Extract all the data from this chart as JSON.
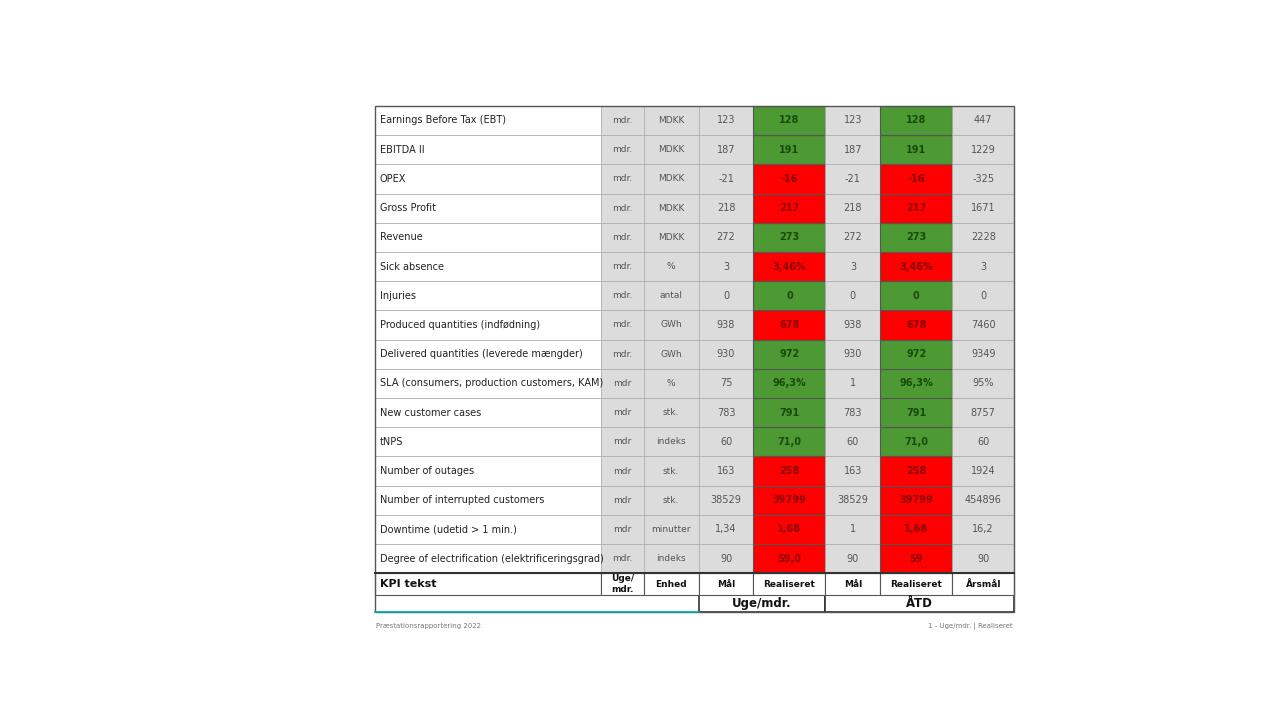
{
  "title_left": "Præstationsrapportering 2022",
  "title_right": "1 - Uge/mdr. | Realiseret",
  "rows": [
    {
      "kpi": "Degree of electrification (elektrificeringsgrad)",
      "freq": "mdr.",
      "enhed": "indeks",
      "uge_maal": "90",
      "uge_real": "59,0",
      "uge_real_color": "red",
      "atd_maal": "90",
      "atd_real": "59",
      "atd_real_color": "red",
      "aarsmaal": "90"
    },
    {
      "kpi": "Downtime (udetid > 1 min.)",
      "freq": "mdr",
      "enhed": "minutter",
      "uge_maal": "1,34",
      "uge_real": "1,68",
      "uge_real_color": "red",
      "atd_maal": "1",
      "atd_real": "1,68",
      "atd_real_color": "red",
      "aarsmaal": "16,2"
    },
    {
      "kpi": "Number of interrupted customers",
      "freq": "mdr",
      "enhed": "stk.",
      "uge_maal": "38529",
      "uge_real": "39799",
      "uge_real_color": "red",
      "atd_maal": "38529",
      "atd_real": "39799",
      "atd_real_color": "red",
      "aarsmaal": "454896"
    },
    {
      "kpi": "Number of outages",
      "freq": "mdr",
      "enhed": "stk.",
      "uge_maal": "163",
      "uge_real": "258",
      "uge_real_color": "red",
      "atd_maal": "163",
      "atd_real": "258",
      "atd_real_color": "red",
      "aarsmaal": "1924"
    },
    {
      "kpi": "tNPS",
      "freq": "mdr",
      "enhed": "indeks",
      "uge_maal": "60",
      "uge_real": "71,0",
      "uge_real_color": "green",
      "atd_maal": "60",
      "atd_real": "71,0",
      "atd_real_color": "green",
      "aarsmaal": "60"
    },
    {
      "kpi": "New customer cases",
      "freq": "mdr",
      "enhed": "stk.",
      "uge_maal": "783",
      "uge_real": "791",
      "uge_real_color": "green",
      "atd_maal": "783",
      "atd_real": "791",
      "atd_real_color": "green",
      "aarsmaal": "8757"
    },
    {
      "kpi": "SLA (consumers, production customers, KAM)",
      "freq": "mdr",
      "enhed": "%",
      "uge_maal": "75",
      "uge_real": "96,3%",
      "uge_real_color": "green",
      "atd_maal": "1",
      "atd_real": "96,3%",
      "atd_real_color": "green",
      "aarsmaal": "95%"
    },
    {
      "kpi": "Delivered quantities (leverede mængder)",
      "freq": "mdr.",
      "enhed": "GWh",
      "uge_maal": "930",
      "uge_real": "972",
      "uge_real_color": "green",
      "atd_maal": "930",
      "atd_real": "972",
      "atd_real_color": "green",
      "aarsmaal": "9349"
    },
    {
      "kpi": "Produced quantities (indfødning)",
      "freq": "mdr.",
      "enhed": "GWh",
      "uge_maal": "938",
      "uge_real": "678",
      "uge_real_color": "red",
      "atd_maal": "938",
      "atd_real": "678",
      "atd_real_color": "red",
      "aarsmaal": "7460"
    },
    {
      "kpi": "Injuries",
      "freq": "mdr.",
      "enhed": "antal",
      "uge_maal": "0",
      "uge_real": "0",
      "uge_real_color": "green",
      "atd_maal": "0",
      "atd_real": "0",
      "atd_real_color": "green",
      "aarsmaal": "0"
    },
    {
      "kpi": "Sick absence",
      "freq": "mdr.",
      "enhed": "%",
      "uge_maal": "3",
      "uge_real": "3,46%",
      "uge_real_color": "red",
      "atd_maal": "3",
      "atd_real": "3,46%",
      "atd_real_color": "red",
      "aarsmaal": "3"
    },
    {
      "kpi": "Revenue",
      "freq": "mdr.",
      "enhed": "MDKK",
      "uge_maal": "272",
      "uge_real": "273",
      "uge_real_color": "green",
      "atd_maal": "272",
      "atd_real": "273",
      "atd_real_color": "green",
      "aarsmaal": "2228"
    },
    {
      "kpi": "Gross Profit",
      "freq": "mdr.",
      "enhed": "MDKK",
      "uge_maal": "218",
      "uge_real": "217",
      "uge_real_color": "red",
      "atd_maal": "218",
      "atd_real": "217",
      "atd_real_color": "red",
      "aarsmaal": "1671"
    },
    {
      "kpi": "OPEX",
      "freq": "mdr.",
      "enhed": "MDKK",
      "uge_maal": "-21",
      "uge_real": "-16",
      "uge_real_color": "red",
      "atd_maal": "-21",
      "atd_real": "-16",
      "atd_real_color": "red",
      "aarsmaal": "-325"
    },
    {
      "kpi": "EBITDA II",
      "freq": "mdr.",
      "enhed": "MDKK",
      "uge_maal": "187",
      "uge_real": "191",
      "uge_real_color": "green",
      "atd_maal": "187",
      "atd_real": "191",
      "atd_real_color": "green",
      "aarsmaal": "1229"
    },
    {
      "kpi": "Earnings Before Tax (EBT)",
      "freq": "mdr.",
      "enhed": "MDKK",
      "uge_maal": "123",
      "uge_real": "128",
      "uge_real_color": "green",
      "atd_maal": "123",
      "atd_real": "128",
      "atd_real_color": "green",
      "aarsmaal": "447"
    }
  ],
  "color_red": "#FF0000",
  "color_green": "#4d9933",
  "color_cell_gray": "#DCDCDC",
  "color_white": "#FFFFFF",
  "color_border_dark": "#555555",
  "color_border_light": "#BBBBBB",
  "color_red_text": "#8B0000",
  "color_green_text": "#1a4a0a",
  "color_dark_text": "#222222",
  "color_gray_text": "#555555"
}
